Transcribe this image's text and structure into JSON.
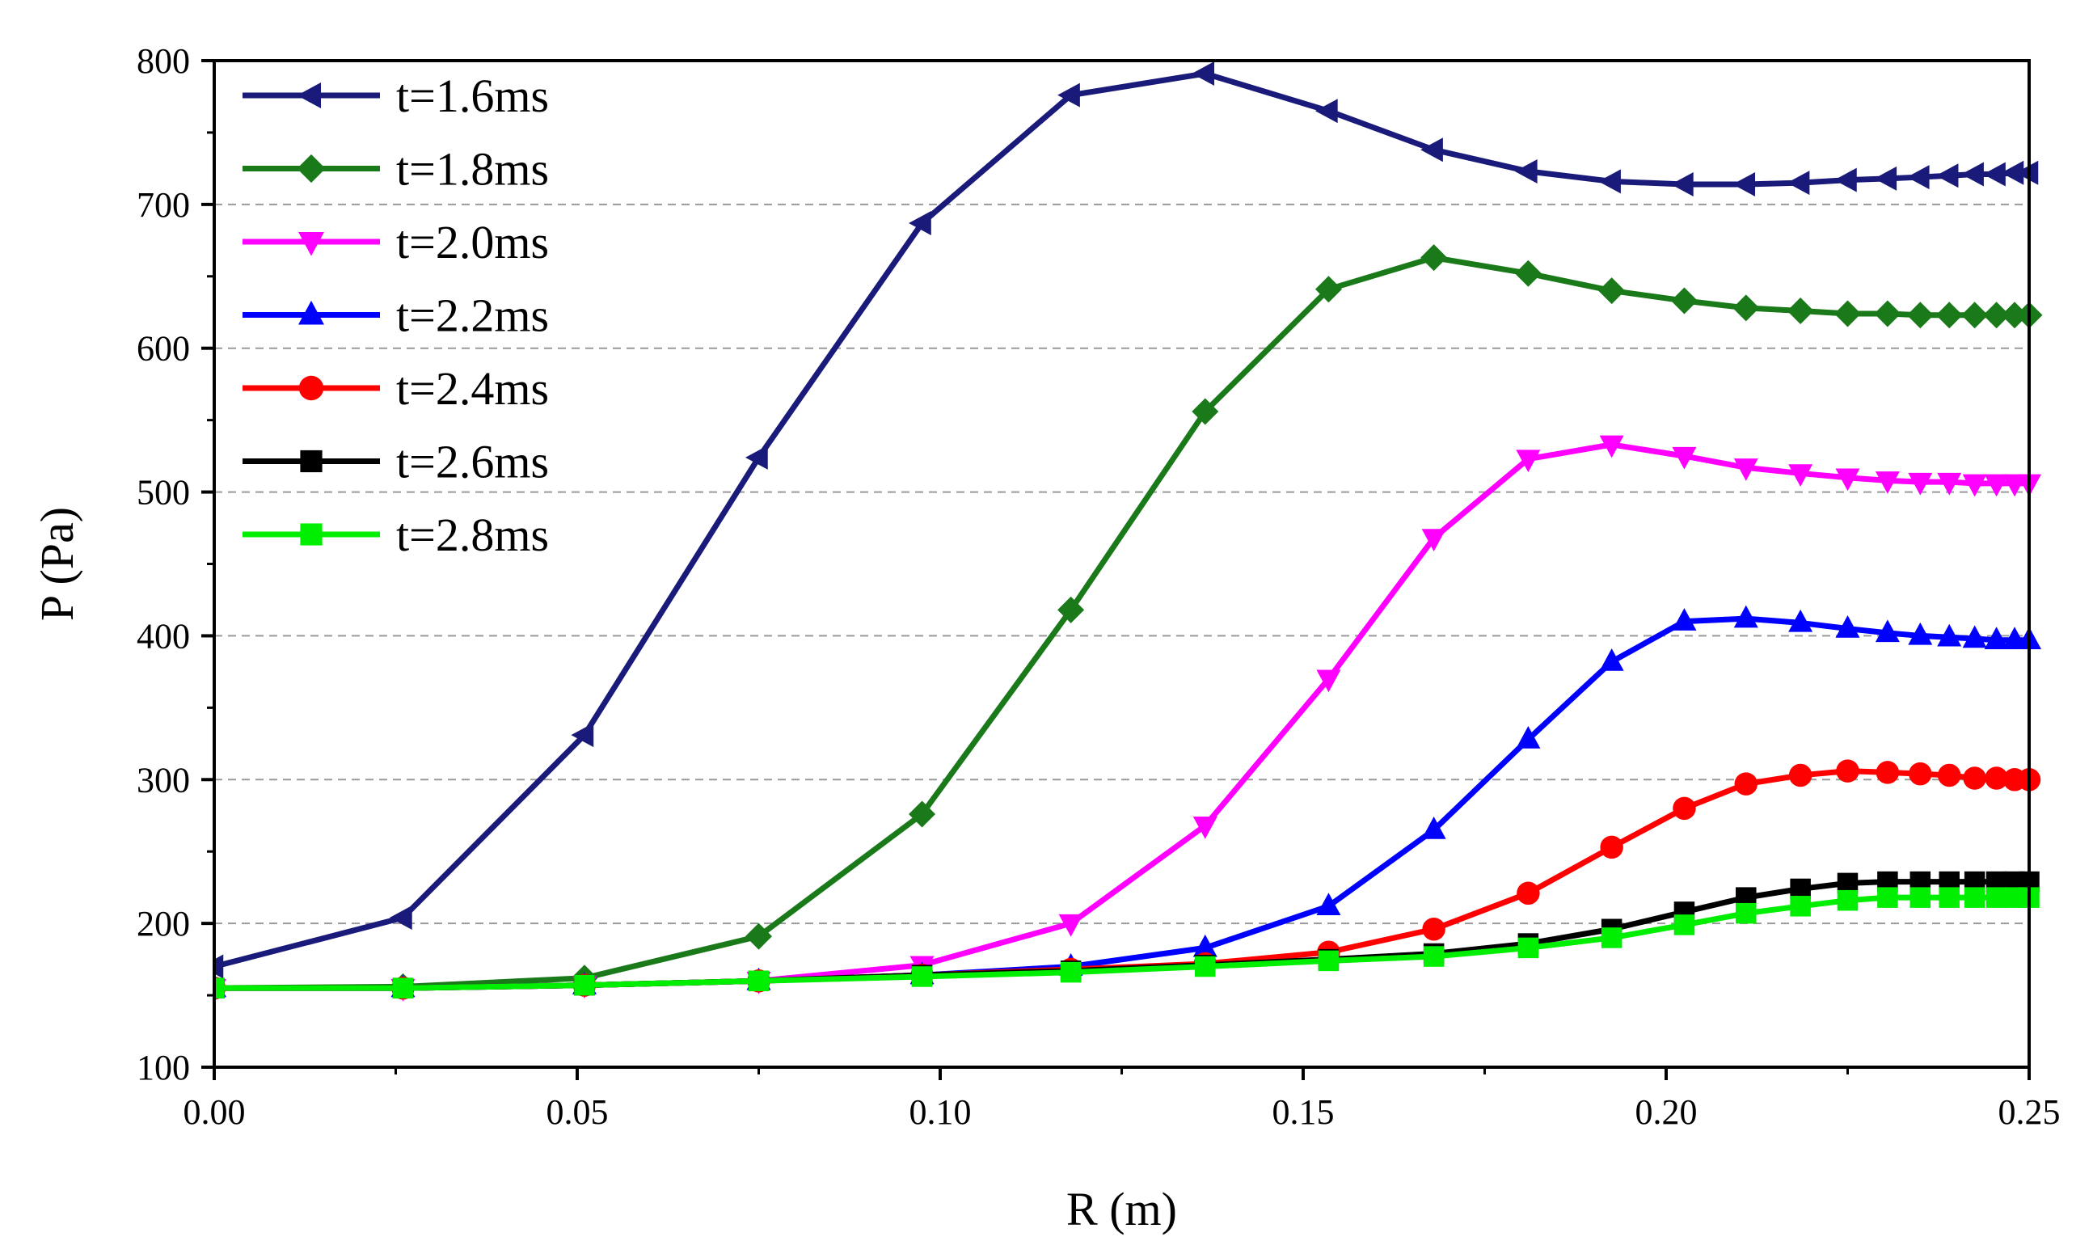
{
  "chart_data": {
    "type": "line",
    "title": "",
    "xlabel": "R (m)",
    "ylabel": "P (Pa)",
    "xlim": [
      0,
      0.25
    ],
    "ylim": [
      100,
      800
    ],
    "xticks": [
      0.0,
      0.05,
      0.1,
      0.15,
      0.2,
      0.25
    ],
    "xtick_labels": [
      "0.00",
      "0.05",
      "0.10",
      "0.15",
      "0.20",
      "0.25"
    ],
    "yticks": [
      100,
      200,
      300,
      400,
      500,
      600,
      700,
      800
    ],
    "ytick_labels": [
      "100",
      "200",
      "300",
      "400",
      "500",
      "600",
      "700",
      "800"
    ],
    "grid": "horizontal dashed",
    "legend_position": "top-left",
    "x": [
      0.0,
      0.026,
      0.051,
      0.075,
      0.0975,
      0.118,
      0.1365,
      0.1535,
      0.168,
      0.181,
      0.1925,
      0.2025,
      0.211,
      0.2185,
      0.225,
      0.2305,
      0.235,
      0.239,
      0.2425,
      0.2455,
      0.248,
      0.25
    ],
    "series": [
      {
        "name": "t=1.6ms",
        "color": "#1a1a7a",
        "marker": "triangle-left",
        "values": [
          170,
          204,
          331,
          524,
          687,
          776,
          791,
          765,
          738,
          723,
          716,
          714,
          714,
          715,
          717,
          718,
          719,
          720,
          721,
          721,
          722,
          722
        ]
      },
      {
        "name": "t=1.8ms",
        "color": "#1a7a1a",
        "marker": "diamond",
        "values": [
          155,
          156,
          162,
          191,
          276,
          418,
          556,
          641,
          663,
          652,
          640,
          633,
          628,
          626,
          624,
          624,
          623,
          623,
          623,
          623,
          623,
          623
        ]
      },
      {
        "name": "t=2.0ms",
        "color": "#ff00ff",
        "marker": "triangle-down",
        "values": [
          155,
          155,
          157,
          160,
          171,
          200,
          268,
          370,
          468,
          523,
          533,
          525,
          517,
          513,
          510,
          508,
          507,
          507,
          506,
          506,
          506,
          506
        ]
      },
      {
        "name": "t=2.2ms",
        "color": "#0000ff",
        "marker": "triangle-up",
        "values": [
          155,
          155,
          157,
          160,
          164,
          170,
          183,
          212,
          265,
          328,
          382,
          410,
          412,
          409,
          405,
          402,
          400,
          399,
          398,
          397,
          397,
          397
        ]
      },
      {
        "name": "t=2.4ms",
        "color": "#ff0000",
        "marker": "circle",
        "values": [
          155,
          155,
          157,
          160,
          164,
          168,
          172,
          180,
          196,
          221,
          253,
          280,
          297,
          303,
          306,
          305,
          304,
          303,
          301,
          301,
          300,
          300
        ]
      },
      {
        "name": "t=2.6ms",
        "color": "#000000",
        "marker": "square",
        "values": [
          155,
          155,
          157,
          160,
          164,
          167,
          171,
          175,
          179,
          186,
          196,
          208,
          218,
          224,
          228,
          229,
          229,
          229,
          229,
          229,
          229,
          229
        ]
      },
      {
        "name": "t=2.8ms",
        "color": "#00ee00",
        "marker": "square",
        "values": [
          155,
          155,
          157,
          160,
          163,
          166,
          170,
          174,
          177,
          183,
          190,
          199,
          207,
          212,
          216,
          218,
          218,
          218,
          218,
          218,
          218,
          218
        ]
      }
    ]
  }
}
